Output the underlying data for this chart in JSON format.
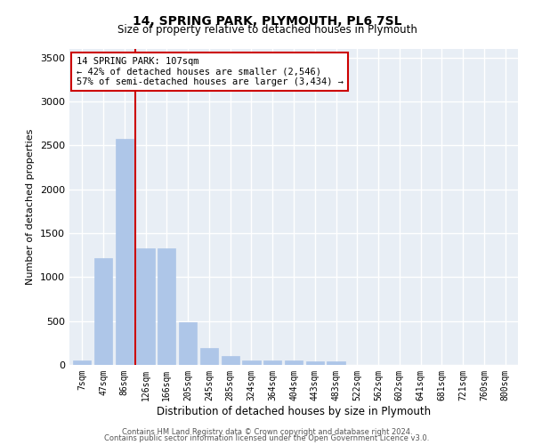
{
  "title": "14, SPRING PARK, PLYMOUTH, PL6 7SL",
  "subtitle": "Size of property relative to detached houses in Plymouth",
  "xlabel": "Distribution of detached houses by size in Plymouth",
  "ylabel": "Number of detached properties",
  "categories": [
    "7sqm",
    "47sqm",
    "86sqm",
    "126sqm",
    "166sqm",
    "205sqm",
    "245sqm",
    "285sqm",
    "324sqm",
    "364sqm",
    "404sqm",
    "443sqm",
    "483sqm",
    "522sqm",
    "562sqm",
    "602sqm",
    "641sqm",
    "681sqm",
    "721sqm",
    "760sqm",
    "800sqm"
  ],
  "values": [
    55,
    1220,
    2580,
    1330,
    1330,
    490,
    195,
    100,
    55,
    50,
    50,
    45,
    40,
    0,
    0,
    0,
    0,
    0,
    0,
    0,
    0
  ],
  "bar_color": "#aec6e8",
  "bar_edge_color": "#aec6e8",
  "vline_color": "#cc0000",
  "annotation_text": "14 SPRING PARK: 107sqm\n← 42% of detached houses are smaller (2,546)\n57% of semi-detached houses are larger (3,434) →",
  "annotation_box_color": "#cc0000",
  "ylim": [
    0,
    3600
  ],
  "yticks": [
    0,
    500,
    1000,
    1500,
    2000,
    2500,
    3000,
    3500
  ],
  "background_color": "#e8eef5",
  "grid_color": "#ffffff",
  "footer1": "Contains HM Land Registry data © Crown copyright and database right 2024.",
  "footer2": "Contains public sector information licensed under the Open Government Licence v3.0."
}
